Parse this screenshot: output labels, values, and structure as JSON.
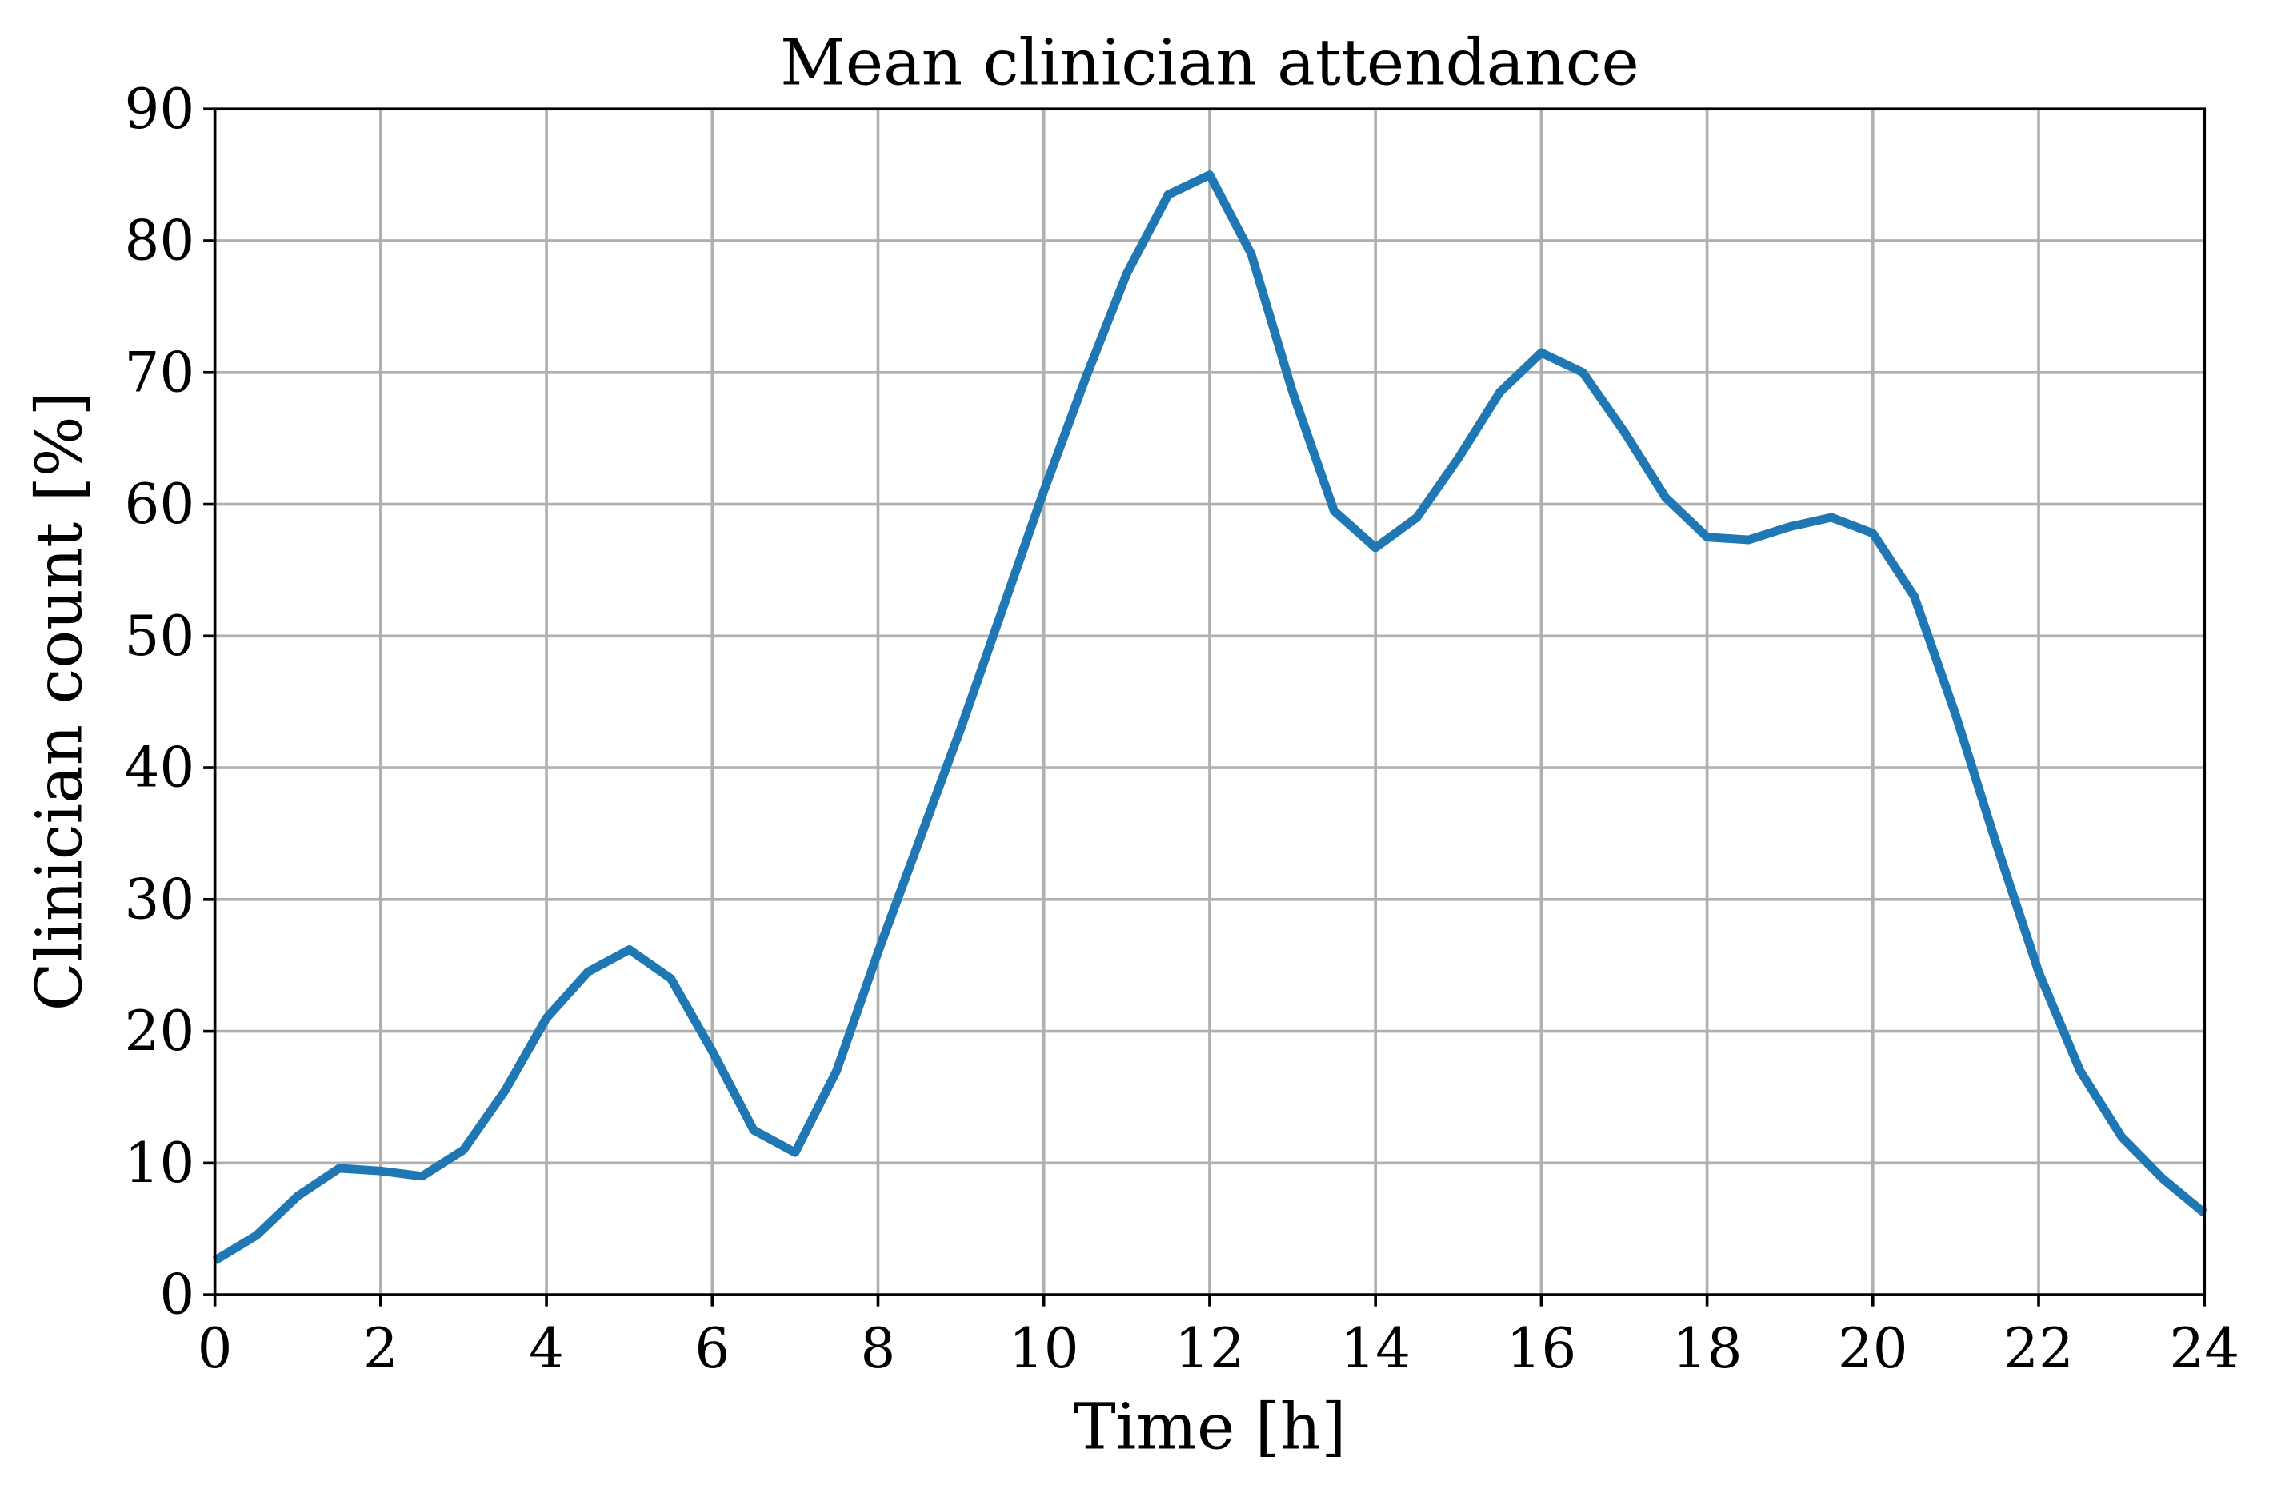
{
  "chart_data": {
    "type": "line",
    "title": "Mean clinician attendance",
    "x_label": "Time [h]",
    "y_label": "Clinician count [%]",
    "x": [
      0,
      0.5,
      1,
      1.5,
      2,
      2.5,
      3,
      3.5,
      4,
      4.5,
      5,
      5.5,
      6,
      6.5,
      7,
      7.5,
      8,
      8.5,
      9,
      9.5,
      10,
      10.5,
      11,
      11.5,
      12,
      12.5,
      13,
      13.5,
      14,
      14.5,
      15,
      15.5,
      16,
      16.5,
      17,
      17.5,
      18,
      18.5,
      19,
      19.5,
      20,
      20.5,
      21,
      21.5,
      22,
      22.5,
      23,
      23.5,
      24
    ],
    "values": [
      2.6,
      4.5,
      7.5,
      9.6,
      9.4,
      9.0,
      11,
      15.5,
      21,
      24.5,
      26.2,
      24,
      18.5,
      12.5,
      10.8,
      17,
      26,
      34.5,
      43,
      52,
      61,
      69.5,
      77.5,
      83.5,
      85,
      79,
      68.5,
      59.5,
      56.7,
      59,
      63.5,
      68.5,
      71.5,
      70,
      65.5,
      60.5,
      57.5,
      57.3,
      58.3,
      59,
      57.8,
      53,
      44,
      34,
      24.5,
      17,
      12,
      8.8,
      6.2
    ],
    "color": "#1f77b4",
    "xlim": [
      0,
      24
    ],
    "xticks": [
      0,
      2,
      4,
      6,
      8,
      10,
      12,
      14,
      16,
      18,
      20,
      22,
      24
    ],
    "ylim": [
      0,
      90
    ],
    "yticks": [
      0,
      10,
      20,
      30,
      40,
      50,
      60,
      70,
      80,
      90
    ],
    "grid": true
  }
}
